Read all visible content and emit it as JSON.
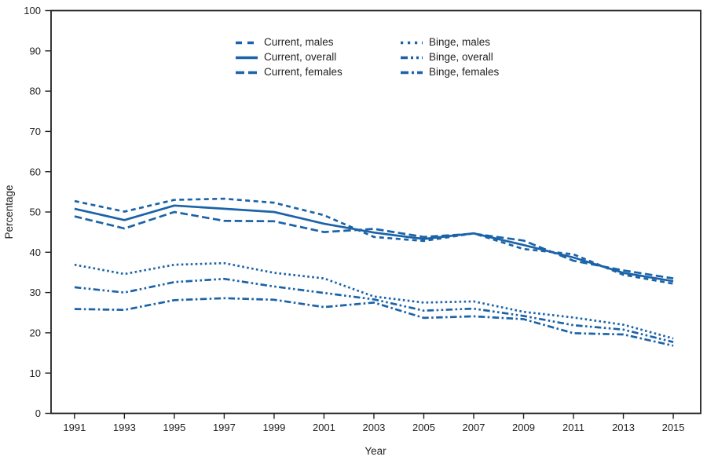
{
  "figure": {
    "background": "#ffffff",
    "line_color": "#1b63a8",
    "text_color": "#231f20",
    "frame_color": "#231f20"
  },
  "axes": {
    "y_label": "Percentage",
    "x_label": "Year",
    "y_ticks": [
      0,
      10,
      20,
      30,
      40,
      50,
      60,
      70,
      80,
      90,
      100
    ],
    "x_ticks": [
      1991,
      1993,
      1995,
      1997,
      1999,
      2001,
      2003,
      2005,
      2007,
      2009,
      2011,
      2013,
      2015
    ]
  },
  "legend": {
    "columns": [
      [
        0,
        1,
        2
      ],
      [
        3,
        4,
        5
      ]
    ]
  },
  "chart_data": {
    "type": "line",
    "title": "",
    "xlabel": "Year",
    "ylabel": "Percentage",
    "ylim": [
      0,
      100
    ],
    "xlim": [
      1990.06,
      2016.1
    ],
    "grid": false,
    "legend_position": "top-center-two-columns",
    "x": [
      1991,
      1993,
      1995,
      1997,
      1999,
      2001,
      2003,
      2005,
      2007,
      2009,
      2011,
      2013,
      2015
    ],
    "series": [
      {
        "name": "Current, males",
        "style": "dashed",
        "values": [
          52.7,
          50.1,
          53.0,
          53.3,
          52.3,
          49.2,
          43.8,
          42.8,
          44.7,
          40.8,
          39.5,
          34.4,
          32.2
        ]
      },
      {
        "name": "Current, overall",
        "style": "solid",
        "values": [
          50.8,
          48.0,
          51.6,
          50.8,
          50.0,
          47.1,
          44.9,
          43.3,
          44.7,
          41.8,
          38.7,
          34.9,
          32.8
        ]
      },
      {
        "name": "Current, females",
        "style": "long-dash",
        "values": [
          48.9,
          45.9,
          50.0,
          47.8,
          47.7,
          45.0,
          45.8,
          43.8,
          44.6,
          42.9,
          37.9,
          35.5,
          33.5
        ]
      },
      {
        "name": "Binge, males",
        "style": "dotted",
        "values": [
          36.9,
          34.6,
          36.9,
          37.3,
          34.9,
          33.5,
          29.0,
          27.5,
          27.8,
          25.2,
          23.8,
          22.0,
          18.6
        ]
      },
      {
        "name": "Binge, overall",
        "style": "dash-dot-dot",
        "values": [
          31.3,
          30.0,
          32.6,
          33.4,
          31.5,
          29.9,
          28.3,
          25.5,
          26.0,
          24.2,
          21.9,
          20.8,
          17.7
        ]
      },
      {
        "name": "Binge, females",
        "style": "dash-dot",
        "values": [
          25.9,
          25.7,
          28.1,
          28.6,
          28.2,
          26.4,
          27.5,
          23.7,
          24.1,
          23.4,
          19.9,
          19.6,
          16.8
        ]
      }
    ]
  }
}
